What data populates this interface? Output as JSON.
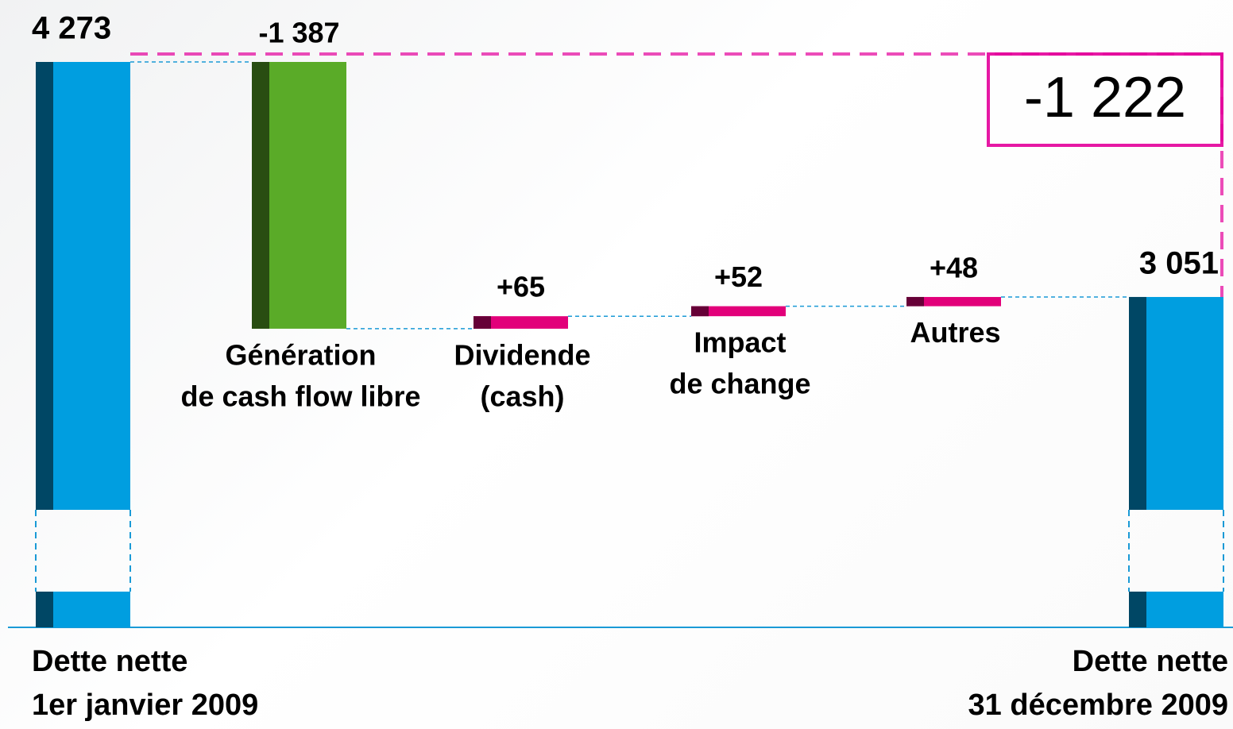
{
  "chart_data": {
    "type": "waterfall",
    "categories": [
      [
        "Dette nette",
        "1er janvier 2009"
      ],
      [
        "Génération",
        "de cash flow libre"
      ],
      [
        "Dividende",
        "(cash)"
      ],
      [
        "Impact",
        "de change"
      ],
      [
        "Autres"
      ],
      [
        "Dette nette",
        "31 décembre 2009"
      ]
    ],
    "values": [
      4273,
      -1387,
      65,
      52,
      48,
      3051
    ],
    "value_labels": [
      "4 273",
      "-1 387",
      "+65",
      "+52",
      "+48",
      "3 051"
    ],
    "kinds": [
      "total",
      "delta",
      "delta",
      "delta",
      "delta",
      "total"
    ],
    "colors": [
      "#009ee0",
      "#5aab28",
      "#e2007a",
      "#e2007a",
      "#e2007a",
      "#009ee0"
    ],
    "total_change": -1222,
    "total_change_label": "-1 222",
    "annotation_color": "#e4009b"
  }
}
